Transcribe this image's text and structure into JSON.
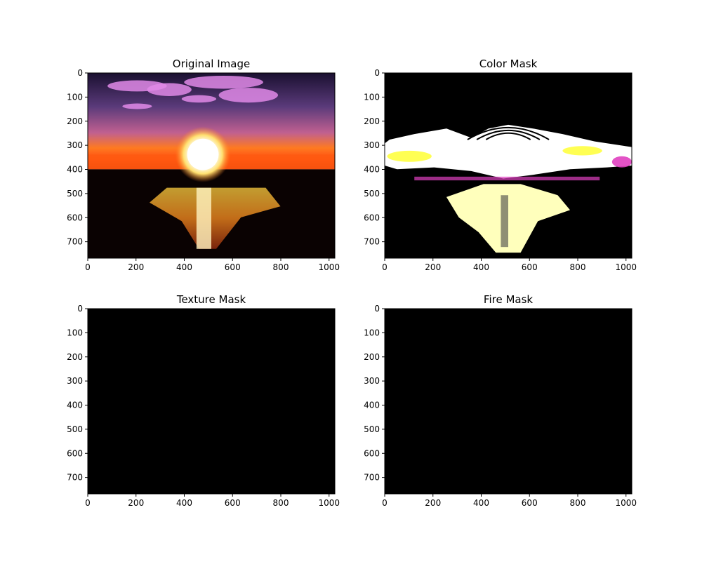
{
  "chart_data": [
    {
      "type": "heatmap",
      "panel": "top-left",
      "title": "Original Image",
      "content": "image",
      "xlim": [
        0,
        1024
      ],
      "ylim": [
        768,
        0
      ],
      "xticks": [
        0,
        200,
        400,
        600,
        800,
        1000
      ],
      "yticks": [
        0,
        100,
        200,
        300,
        400,
        500,
        600,
        700
      ],
      "xlabel": "",
      "ylabel": "",
      "grid": false
    },
    {
      "type": "heatmap",
      "panel": "top-right",
      "title": "Color Mask",
      "content": "mask",
      "xlim": [
        0,
        1024
      ],
      "ylim": [
        768,
        0
      ],
      "xticks": [
        0,
        200,
        400,
        600,
        800,
        1000
      ],
      "yticks": [
        0,
        100,
        200,
        300,
        400,
        500,
        600,
        700
      ],
      "xlabel": "",
      "ylabel": "",
      "grid": false
    },
    {
      "type": "heatmap",
      "panel": "bottom-left",
      "title": "Texture Mask",
      "content": "empty",
      "xlim": [
        0,
        1024
      ],
      "ylim": [
        768,
        0
      ],
      "xticks": [
        0,
        200,
        400,
        600,
        800,
        1000
      ],
      "yticks": [
        0,
        100,
        200,
        300,
        400,
        500,
        600,
        700
      ],
      "xlabel": "",
      "ylabel": "",
      "grid": false
    },
    {
      "type": "heatmap",
      "panel": "bottom-right",
      "title": "Fire Mask",
      "content": "empty",
      "xlim": [
        0,
        1024
      ],
      "ylim": [
        768,
        0
      ],
      "xticks": [
        0,
        200,
        400,
        600,
        800,
        1000
      ],
      "yticks": [
        0,
        100,
        200,
        300,
        400,
        500,
        600,
        700
      ],
      "xlabel": "",
      "ylabel": "",
      "grid": false
    }
  ],
  "colors": {
    "background": "#ffffff",
    "image_background": "#000000",
    "sky_top": "#2a1a40",
    "sky_mid": "#8a4a8a",
    "horizon": "#ff6a10",
    "sun": "#ffffff",
    "cloud": "#e08ae8",
    "reflection": "#ffb020",
    "mask_white": "#ffffff",
    "mask_yellow": "#ffff40",
    "mask_magenta": "#e040c0"
  }
}
